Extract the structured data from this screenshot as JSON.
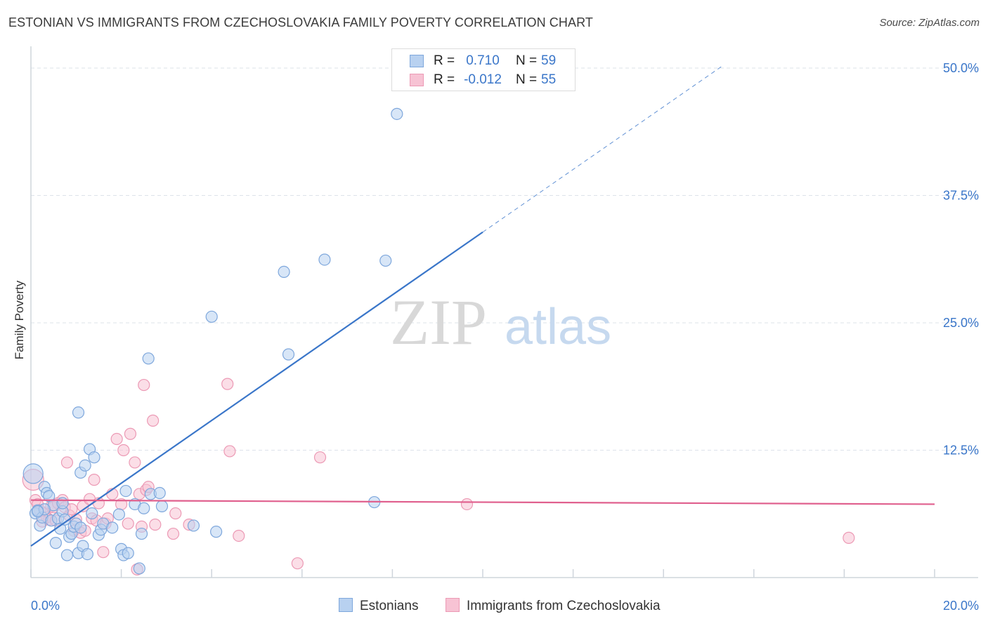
{
  "title": "ESTONIAN VS IMMIGRANTS FROM CZECHOSLOVAKIA FAMILY POVERTY CORRELATION CHART",
  "source": "Source: ZipAtlas.com",
  "watermark": {
    "zip": "ZIP",
    "atlas": "atlas"
  },
  "colors": {
    "blue": "#3a76c9",
    "blue_fill": "#b8d1f0",
    "blue_stroke": "#7ea7dc",
    "pink": "#e0608e",
    "pink_fill": "#f7c3d4",
    "pink_stroke": "#ec9ab5",
    "grid": "#dde3ea",
    "axis": "#cfd5dc"
  },
  "stats": {
    "estonians": {
      "r_label": "R =",
      "r_value": "0.710",
      "n_label": "N =",
      "n_value": "59"
    },
    "czech": {
      "r_label": "R =",
      "r_value": "-0.012",
      "n_label": "N =",
      "n_value": "55"
    }
  },
  "legend": {
    "estonians": "Estonians",
    "czech": "Immigrants from Czechoslovakia"
  },
  "chart_data": {
    "type": "scatter",
    "title": "ESTONIAN VS IMMIGRANTS FROM CZECHOSLOVAKIA FAMILY POVERTY CORRELATION CHART",
    "xlabel": "",
    "ylabel": "Family Poverty",
    "xlim": [
      0,
      20
    ],
    "ylim": [
      0,
      52
    ],
    "x_tick_labels": [
      {
        "value": 0,
        "label": "0.0%"
      },
      {
        "value": 20,
        "label": "20.0%"
      }
    ],
    "y_tick_labels": [
      {
        "value": 12.5,
        "label": "12.5%"
      },
      {
        "value": 25,
        "label": "25.0%"
      },
      {
        "value": 37.5,
        "label": "37.5%"
      },
      {
        "value": 50,
        "label": "50.0%"
      }
    ],
    "x_minor_ticks": [
      0,
      2,
      4,
      6,
      8,
      10,
      12,
      14,
      16,
      18,
      20
    ],
    "grid": true,
    "legend_position": "bottom-center",
    "series": [
      {
        "name": "Estonians",
        "color": "#3a76c9",
        "points": [
          [
            0.05,
            10.2
          ],
          [
            0.1,
            6.3
          ],
          [
            0.15,
            6.6
          ],
          [
            0.2,
            5.1
          ],
          [
            0.25,
            5.9
          ],
          [
            0.3,
            8.9
          ],
          [
            0.35,
            8.3
          ],
          [
            0.4,
            8.0
          ],
          [
            0.45,
            5.6
          ],
          [
            0.5,
            7.1
          ],
          [
            0.55,
            3.4
          ],
          [
            0.6,
            5.8
          ],
          [
            0.65,
            4.8
          ],
          [
            0.7,
            6.5
          ],
          [
            0.75,
            5.7
          ],
          [
            0.8,
            2.2
          ],
          [
            0.85,
            4.0
          ],
          [
            0.9,
            4.3
          ],
          [
            0.95,
            5.0
          ],
          [
            1.0,
            5.3
          ],
          [
            1.05,
            2.4
          ],
          [
            1.1,
            4.9
          ],
          [
            1.05,
            16.2
          ],
          [
            1.1,
            10.3
          ],
          [
            1.15,
            3.1
          ],
          [
            1.2,
            11.0
          ],
          [
            1.25,
            2.3
          ],
          [
            1.3,
            12.6
          ],
          [
            1.35,
            6.3
          ],
          [
            1.4,
            11.8
          ],
          [
            1.5,
            4.2
          ],
          [
            1.55,
            4.7
          ],
          [
            1.6,
            5.3
          ],
          [
            1.8,
            4.9
          ],
          [
            1.95,
            6.2
          ],
          [
            2.0,
            2.8
          ],
          [
            2.05,
            2.2
          ],
          [
            2.1,
            8.5
          ],
          [
            2.15,
            2.4
          ],
          [
            2.3,
            7.2
          ],
          [
            2.4,
            0.9
          ],
          [
            2.45,
            4.3
          ],
          [
            2.5,
            6.8
          ],
          [
            2.6,
            21.5
          ],
          [
            2.65,
            8.2
          ],
          [
            2.85,
            8.3
          ],
          [
            2.9,
            7.0
          ],
          [
            3.6,
            5.1
          ],
          [
            4.0,
            25.6
          ],
          [
            4.1,
            4.5
          ],
          [
            5.6,
            30.0
          ],
          [
            5.7,
            21.9
          ],
          [
            6.5,
            31.2
          ],
          [
            7.6,
            7.4
          ],
          [
            7.85,
            31.1
          ],
          [
            8.1,
            45.5
          ],
          [
            0.3,
            6.7
          ],
          [
            0.7,
            7.3
          ],
          [
            0.15,
            6.5
          ]
        ],
        "trend": {
          "x0": 0.0,
          "y0": 3.1,
          "x1": 10.0,
          "y1": 33.9,
          "dash_to_x": 15.3,
          "dash_to_y": 50.2
        }
      },
      {
        "name": "Immigrants from Czechoslovakia",
        "color": "#e0608e",
        "points": [
          [
            0.05,
            9.6
          ],
          [
            0.1,
            7.6
          ],
          [
            0.15,
            7.2
          ],
          [
            0.2,
            6.6
          ],
          [
            0.3,
            6.3
          ],
          [
            0.35,
            5.9
          ],
          [
            0.4,
            5.7
          ],
          [
            0.45,
            7.0
          ],
          [
            0.5,
            6.9
          ],
          [
            0.55,
            5.6
          ],
          [
            0.6,
            7.3
          ],
          [
            0.7,
            7.6
          ],
          [
            0.75,
            6.9
          ],
          [
            0.8,
            11.3
          ],
          [
            0.85,
            6.1
          ],
          [
            0.9,
            6.7
          ],
          [
            0.95,
            4.6
          ],
          [
            1.0,
            5.7
          ],
          [
            1.1,
            4.4
          ],
          [
            1.15,
            7.0
          ],
          [
            1.2,
            4.6
          ],
          [
            1.3,
            7.7
          ],
          [
            1.35,
            5.8
          ],
          [
            1.4,
            9.6
          ],
          [
            1.45,
            5.6
          ],
          [
            1.5,
            7.3
          ],
          [
            1.6,
            2.5
          ],
          [
            1.65,
            5.3
          ],
          [
            1.7,
            5.8
          ],
          [
            1.8,
            8.2
          ],
          [
            1.9,
            13.6
          ],
          [
            2.0,
            7.2
          ],
          [
            2.05,
            12.5
          ],
          [
            2.15,
            5.3
          ],
          [
            2.2,
            14.1
          ],
          [
            2.3,
            11.3
          ],
          [
            2.35,
            0.8
          ],
          [
            2.4,
            8.2
          ],
          [
            2.45,
            5.0
          ],
          [
            2.5,
            18.9
          ],
          [
            2.55,
            8.6
          ],
          [
            2.6,
            8.9
          ],
          [
            2.7,
            15.4
          ],
          [
            2.75,
            5.2
          ],
          [
            3.15,
            4.3
          ],
          [
            3.2,
            6.3
          ],
          [
            3.5,
            5.2
          ],
          [
            4.35,
            19.0
          ],
          [
            4.4,
            12.4
          ],
          [
            4.6,
            4.1
          ],
          [
            5.9,
            1.4
          ],
          [
            6.4,
            11.8
          ],
          [
            9.65,
            7.2
          ],
          [
            18.1,
            3.9
          ],
          [
            0.25,
            5.5
          ]
        ],
        "trend": {
          "x0": 0.0,
          "y0": 7.6,
          "x1": 20.0,
          "y1": 7.2
        }
      }
    ]
  }
}
